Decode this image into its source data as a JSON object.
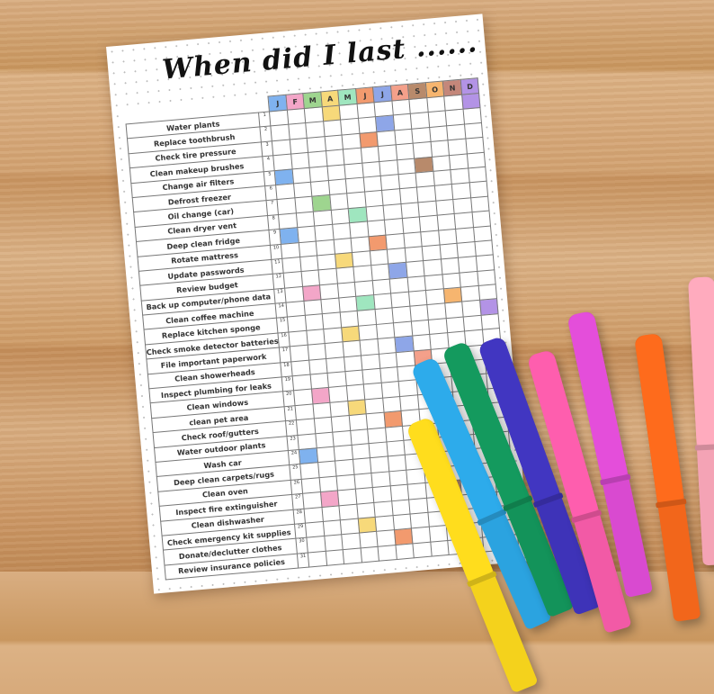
{
  "title": "When did I last ......",
  "months": [
    "J",
    "F",
    "M",
    "A",
    "M",
    "J",
    "J",
    "A",
    "S",
    "O",
    "N",
    "D"
  ],
  "month_colors": [
    "#7fb2ef",
    "#f3a6c8",
    "#9ed58f",
    "#f7d97a",
    "#9fe6bf",
    "#f29a6e",
    "#8ea6e8",
    "#f4a08a",
    "#b88a6b",
    "#f6b56f",
    "#c4877a",
    "#b393e6"
  ],
  "tasks": [
    "Water plants",
    "Replace toothbrush",
    "Check tire pressure",
    "Clean makeup brushes",
    "Change air filters",
    "Defrost freezer",
    "Oil change (car)",
    "Clean dryer vent",
    "Deep clean fridge",
    "Rotate mattress",
    "Update passwords",
    "Review budget",
    "Back up computer/phone data",
    "Clean coffee machine",
    "Replace kitchen sponge",
    "Check smoke detector batteries",
    "File important paperwork",
    "Clean showerheads",
    "Inspect plumbing for leaks",
    "Clean windows",
    "clean pet area",
    "Check roof/gutters",
    "Water outdoor plants",
    "Wash car",
    "Deep clean carpets/rugs",
    "Clean oven",
    "Inspect fire extinguisher",
    "Clean dishwasher",
    "Check emergency kit supplies",
    "Donate/declutter clothes",
    "Review insurance policies"
  ],
  "marks": [
    [
      1,
      3
    ],
    [
      1,
      11
    ],
    [
      2,
      6
    ],
    [
      3,
      5
    ],
    [
      5,
      0
    ],
    [
      5,
      8
    ],
    [
      7,
      2
    ],
    [
      8,
      4
    ],
    [
      9,
      0
    ],
    [
      10,
      5
    ],
    [
      11,
      3
    ],
    [
      12,
      6
    ],
    [
      13,
      1
    ],
    [
      14,
      4
    ],
    [
      14,
      9
    ],
    [
      15,
      11
    ],
    [
      16,
      3
    ],
    [
      17,
      6
    ],
    [
      18,
      7
    ],
    [
      20,
      1
    ],
    [
      21,
      3
    ],
    [
      22,
      5
    ],
    [
      24,
      0
    ],
    [
      27,
      1
    ],
    [
      27,
      8
    ],
    [
      29,
      3
    ],
    [
      30,
      5
    ]
  ],
  "markers": [
    "yellow",
    "light-blue",
    "green",
    "indigo",
    "pink",
    "magenta",
    "orange",
    "light-pink"
  ]
}
